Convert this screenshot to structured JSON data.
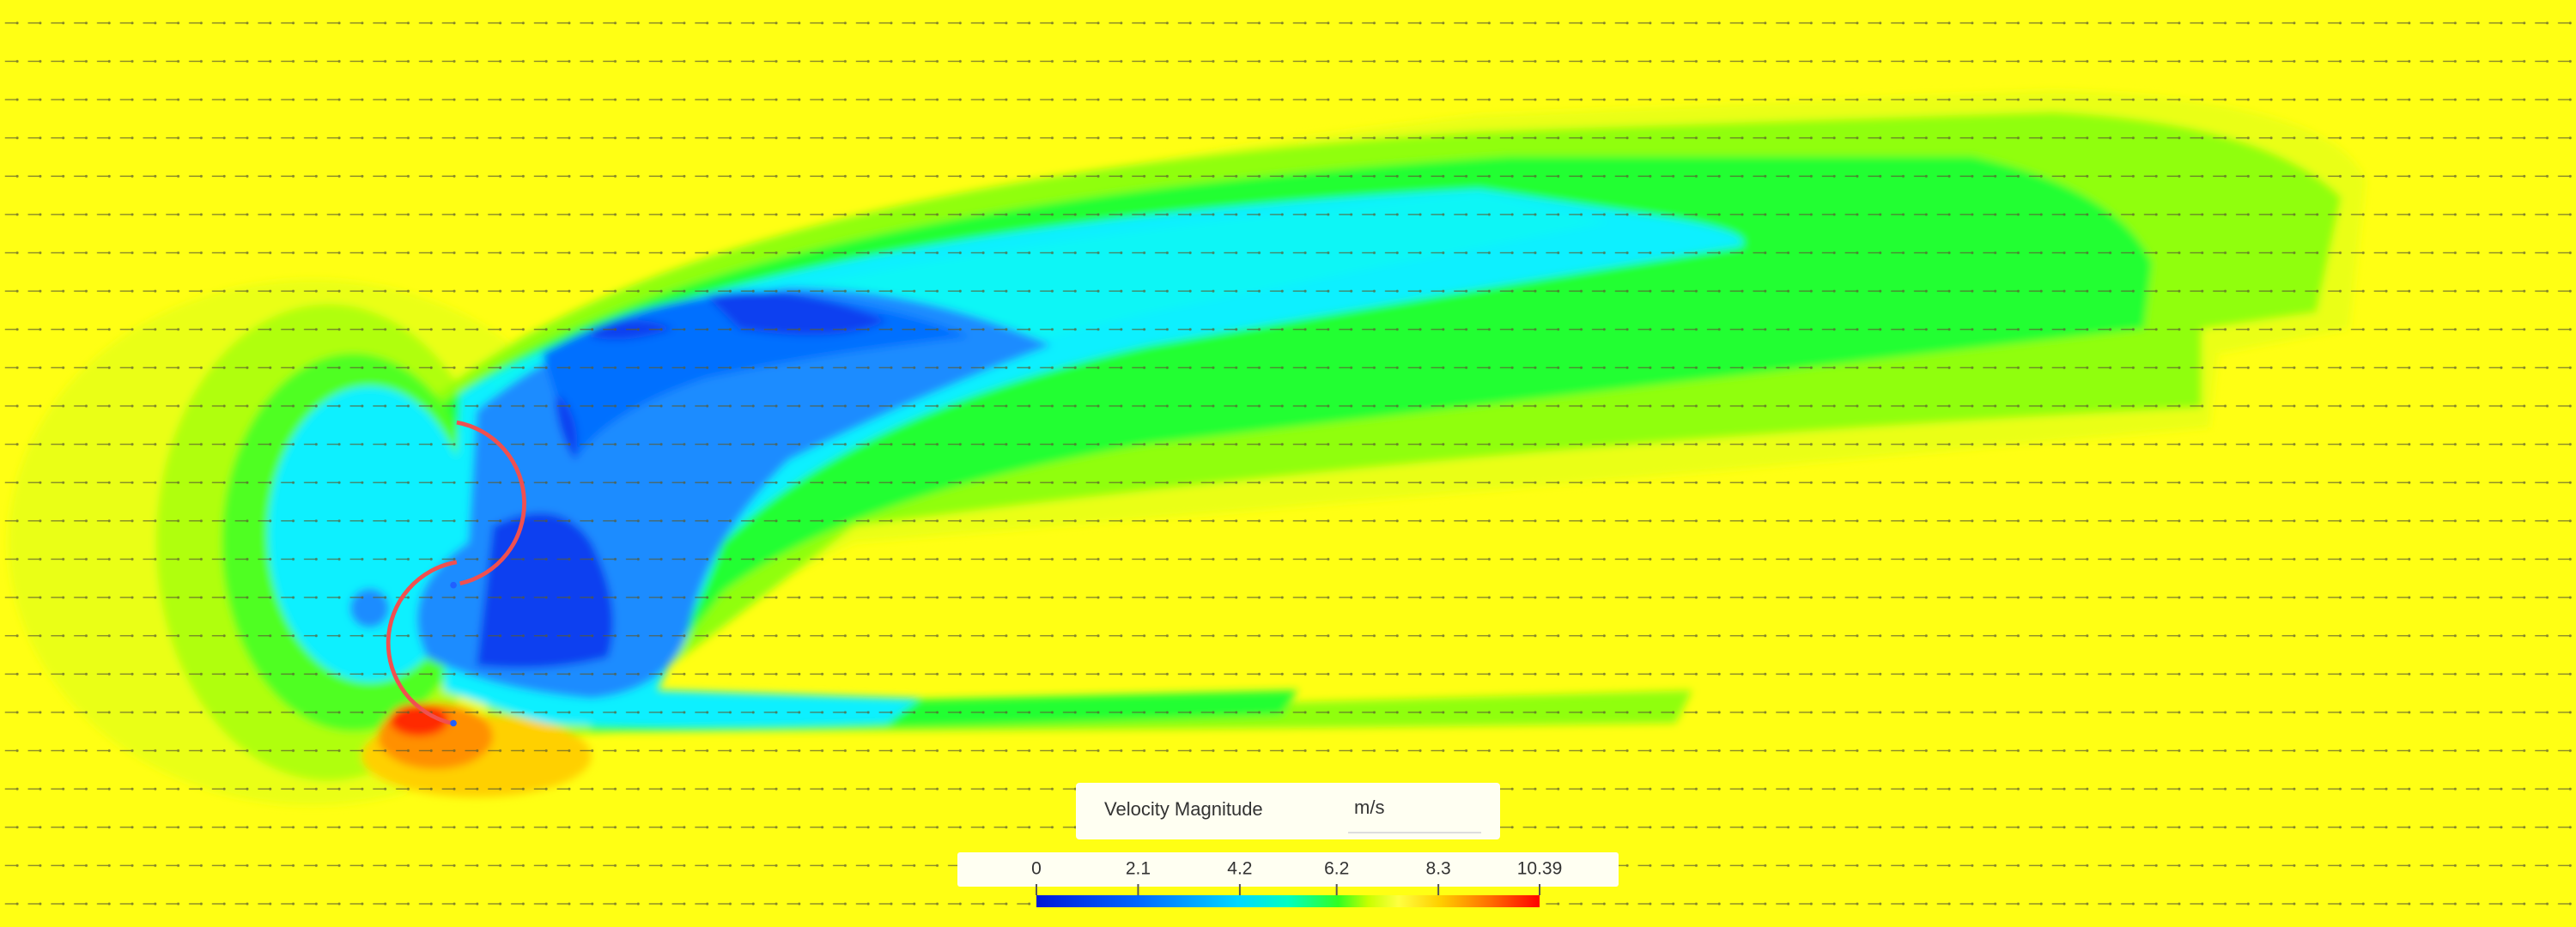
{
  "legend": {
    "title": "Velocity Magnitude",
    "unit": "m/s",
    "ticks": [
      0,
      2.1,
      4.2,
      6.2,
      8.3,
      10.39
    ]
  }
}
